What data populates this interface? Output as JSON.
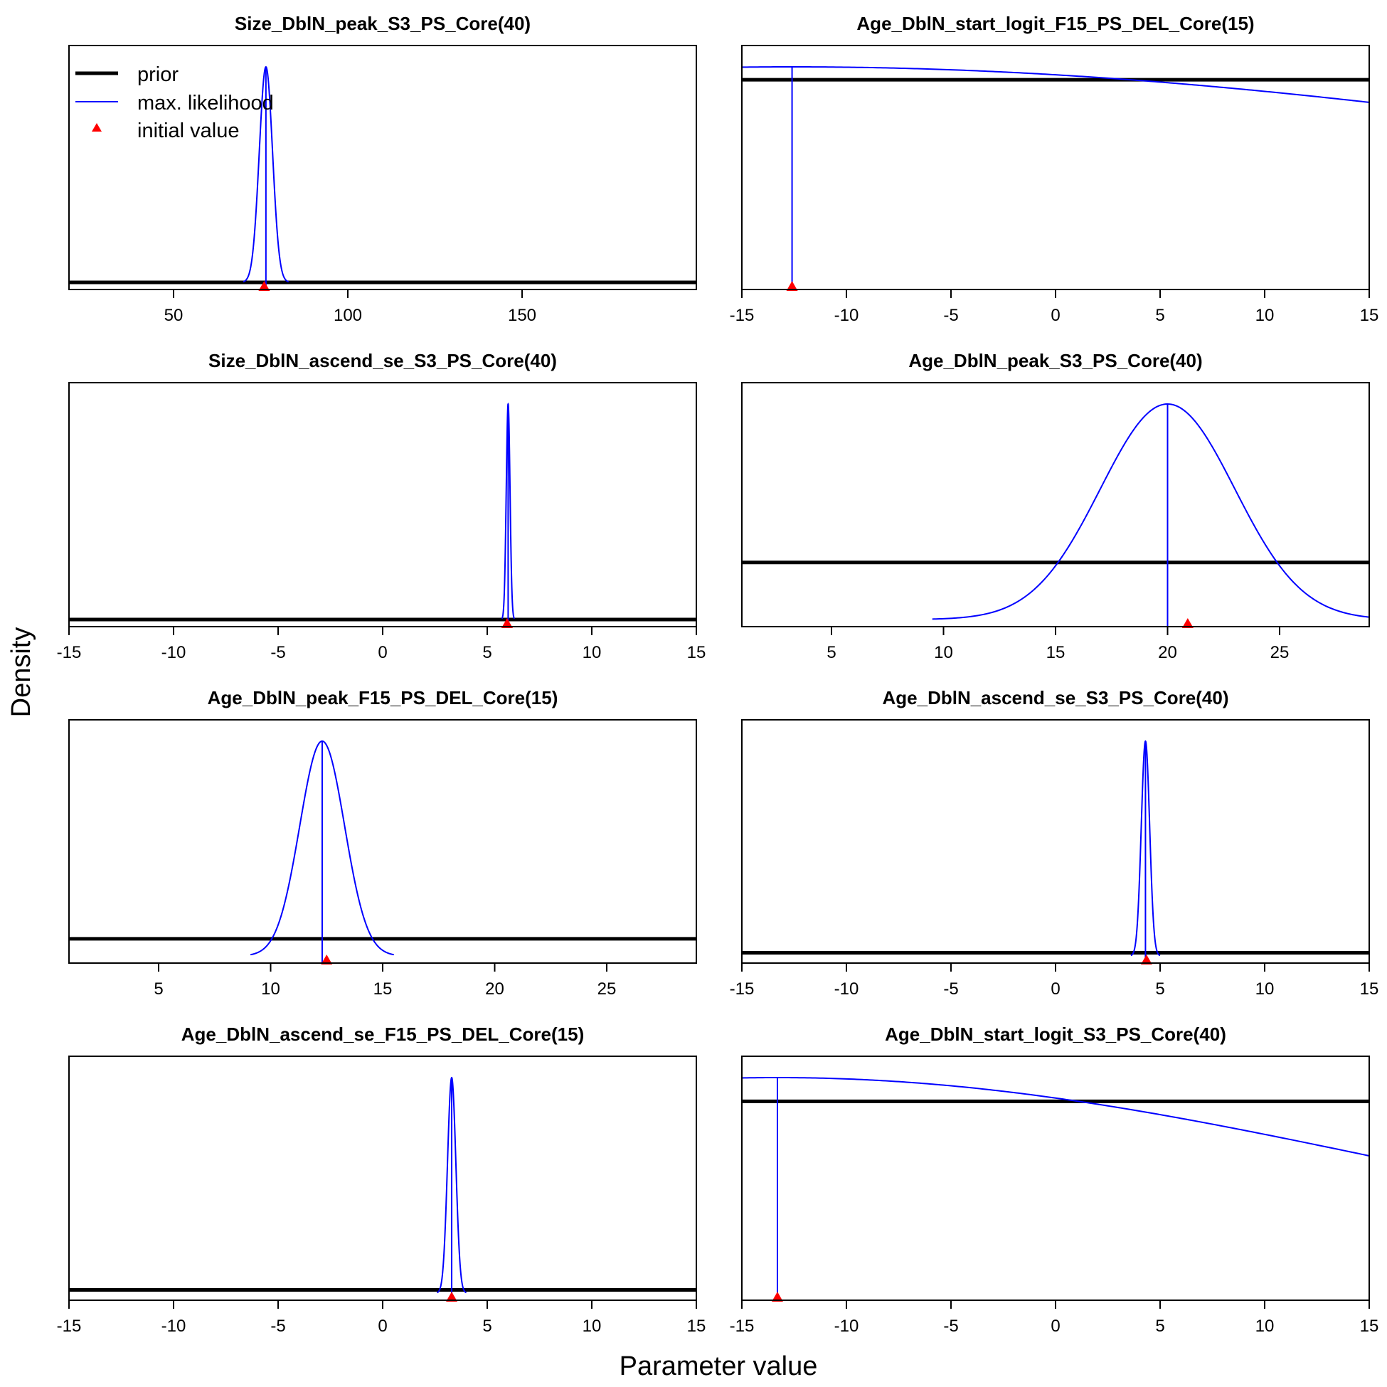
{
  "figure": {
    "xlabel": "Parameter value",
    "ylabel": "Density",
    "colors": {
      "prior": "#000000",
      "ml": "#0000ff",
      "initial": "#ff0000"
    }
  },
  "legend": {
    "prior": "prior",
    "ml": "max. likelihood",
    "initial": "initial value"
  },
  "chart_data": [
    {
      "type": "line",
      "title": "Size_DblN_peak_S3_PS_Core(40)",
      "xlim": [
        20,
        200
      ],
      "ticks": [
        50,
        100,
        150
      ],
      "tick_labels": [
        "50",
        "100",
        "150"
      ],
      "ymax": 1,
      "prior_level": 0.0,
      "ml": {
        "kind": "normal",
        "mean": 76.5,
        "sd": 1.9,
        "peak": 1,
        "lo": 70.0,
        "hi": 83.0
      },
      "mle": 76.5,
      "initial": 76.0
    },
    {
      "type": "line",
      "title": "Age_DblN_start_logit_F15_PS_DEL_Core(15)",
      "xlim": [
        -15,
        15
      ],
      "ticks": [
        -15,
        -10,
        -5,
        0,
        5,
        10,
        15
      ],
      "tick_labels": [
        "-15",
        "-10",
        "-5",
        "0",
        "5",
        "10",
        "15"
      ],
      "ymax": 1,
      "prior_level": 0.94,
      "ml": {
        "kind": "normal",
        "mean": -12.6,
        "sd": 46.0,
        "peak": 1,
        "lo": -15.0,
        "hi": 15.0
      },
      "mle": -12.6,
      "initial": -12.6
    },
    {
      "type": "line",
      "title": "Size_DblN_ascend_se_S3_PS_Core(40)",
      "xlim": [
        -15,
        15
      ],
      "ticks": [
        -15,
        -10,
        -5,
        0,
        5,
        10,
        15
      ],
      "tick_labels": [
        "-15",
        "-10",
        "-5",
        "0",
        "5",
        "10",
        "15"
      ],
      "ymax": 1,
      "prior_level": 0.0,
      "ml": {
        "kind": "normal",
        "mean": 6.0,
        "sd": 0.09,
        "peak": 1,
        "lo": 5.7,
        "hi": 6.3
      },
      "mle": 6.0,
      "initial": 5.95
    },
    {
      "type": "line",
      "title": "Age_DblN_peak_S3_PS_Core(40)",
      "xlim": [
        1,
        29
      ],
      "ticks": [
        5,
        10,
        15,
        20,
        25
      ],
      "tick_labels": [
        "5",
        "10",
        "15",
        "20",
        "25"
      ],
      "ymax": 1,
      "prior_level": 0.265,
      "ml": {
        "kind": "normal",
        "mean": 20.0,
        "sd": 3.0,
        "peak": 1,
        "lo": 9.5,
        "hi": 29.0
      },
      "mle": 20.0,
      "initial": 20.9
    },
    {
      "type": "line",
      "title": "Age_DblN_peak_F15_PS_DEL_Core(15)",
      "xlim": [
        1,
        29
      ],
      "ticks": [
        5,
        10,
        15,
        20,
        25
      ],
      "tick_labels": [
        "5",
        "10",
        "15",
        "20",
        "25"
      ],
      "ymax": 1,
      "prior_level": 0.08,
      "ml": {
        "kind": "normal",
        "mean": 12.3,
        "sd": 1.0,
        "peak": 1,
        "lo": 9.1,
        "hi": 15.5
      },
      "mle": 12.3,
      "initial": 12.5
    },
    {
      "type": "line",
      "title": "Age_DblN_ascend_se_S3_PS_Core(40)",
      "xlim": [
        -15,
        15
      ],
      "ticks": [
        -15,
        -10,
        -5,
        0,
        5,
        10,
        15
      ],
      "tick_labels": [
        "-15",
        "-10",
        "-5",
        "0",
        "5",
        "10",
        "15"
      ],
      "ymax": 1,
      "prior_level": 0.015,
      "ml": {
        "kind": "normal",
        "mean": 4.3,
        "sd": 0.2,
        "peak": 1,
        "lo": 3.6,
        "hi": 5.0
      },
      "mle": 4.3,
      "initial": 4.35
    },
    {
      "type": "line",
      "title": "Age_DblN_ascend_se_F15_PS_DEL_Core(15)",
      "xlim": [
        -15,
        15
      ],
      "ticks": [
        -15,
        -10,
        -5,
        0,
        5,
        10,
        15
      ],
      "tick_labels": [
        "-15",
        "-10",
        "-5",
        "0",
        "5",
        "10",
        "15"
      ],
      "ymax": 1,
      "prior_level": 0.015,
      "ml": {
        "kind": "normal",
        "mean": 3.3,
        "sd": 0.2,
        "peak": 1,
        "lo": 2.6,
        "hi": 4.0
      },
      "mle": 3.3,
      "initial": 3.3
    },
    {
      "type": "line",
      "title": "Age_DblN_start_logit_S3_PS_Core(40)",
      "xlim": [
        -15,
        15
      ],
      "ticks": [
        -15,
        -10,
        -5,
        0,
        5,
        10,
        15
      ],
      "tick_labels": [
        "-15",
        "-10",
        "-5",
        "0",
        "5",
        "10",
        "15"
      ],
      "ymax": 1,
      "prior_level": 0.89,
      "ml": {
        "kind": "normal",
        "mean": -13.3,
        "sd": 29.8,
        "peak": 1,
        "lo": -15.0,
        "hi": 15.0
      },
      "mle": -13.3,
      "initial": -13.3
    }
  ]
}
